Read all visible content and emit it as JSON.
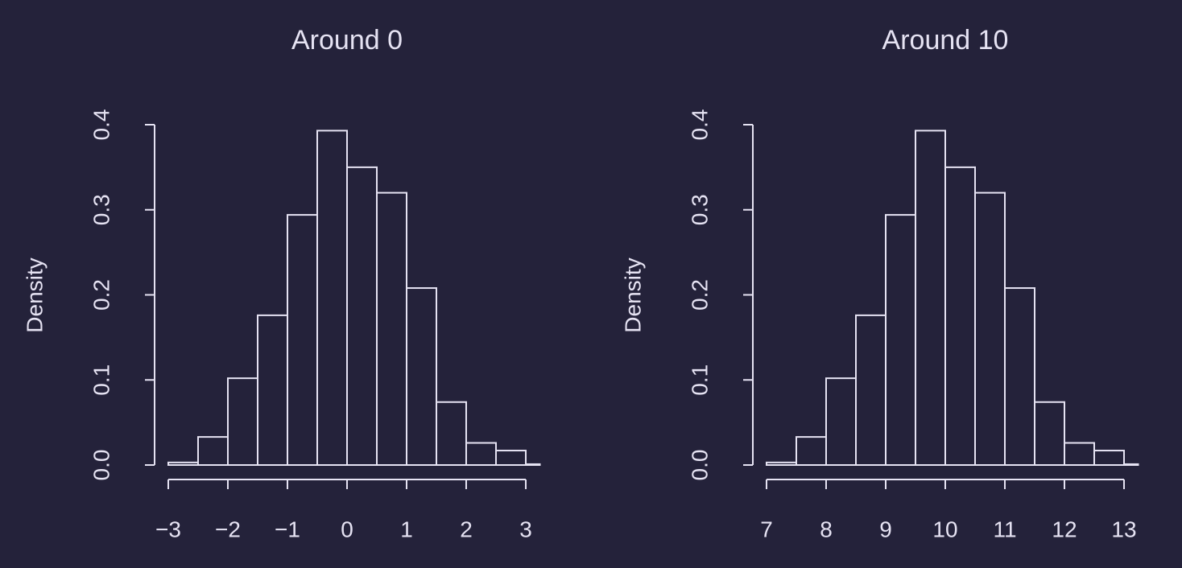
{
  "chart_data": [
    {
      "type": "histogram",
      "title": "Around 0",
      "y_label": "Density",
      "bins": [
        -3,
        -2.5,
        -2,
        -1.5,
        -1,
        -0.5,
        0,
        0.5,
        1,
        1.5,
        2,
        2.5,
        3,
        3.5
      ],
      "values": [
        0.003,
        0.033,
        0.102,
        0.176,
        0.294,
        0.393,
        0.35,
        0.32,
        0.208,
        0.074,
        0.026,
        0.017,
        0.001
      ],
      "color": "#e6e3f3",
      "xlim": [
        -3.25,
        3.25
      ],
      "xticks": [
        {
          "value": -3,
          "label": "−3"
        },
        {
          "value": -2,
          "label": "−2"
        },
        {
          "value": -1,
          "label": "−1"
        },
        0,
        1,
        2,
        3
      ],
      "ylim": [
        0,
        0.4
      ],
      "yticks": [
        {
          "value": 0,
          "label": "0.0"
        },
        0.1,
        0.2,
        0.3,
        0.4
      ]
    },
    {
      "type": "histogram",
      "title": "Around 10",
      "y_label": "Density",
      "bins": [
        7,
        7.5,
        8,
        8.5,
        9,
        9.5,
        10,
        10.5,
        11,
        11.5,
        12,
        12.5,
        13,
        13.5
      ],
      "values": [
        0.003,
        0.033,
        0.102,
        0.176,
        0.294,
        0.393,
        0.35,
        0.32,
        0.208,
        0.074,
        0.026,
        0.017,
        0.001
      ],
      "color": "#e6e3f3",
      "xlim": [
        6.75,
        13.25
      ],
      "xticks": [
        7,
        8,
        9,
        10,
        11,
        12,
        13
      ],
      "ylim": [
        0,
        0.4
      ],
      "yticks": [
        {
          "value": 0,
          "label": "0.0"
        },
        0.1,
        0.2,
        0.3,
        0.4
      ]
    }
  ]
}
